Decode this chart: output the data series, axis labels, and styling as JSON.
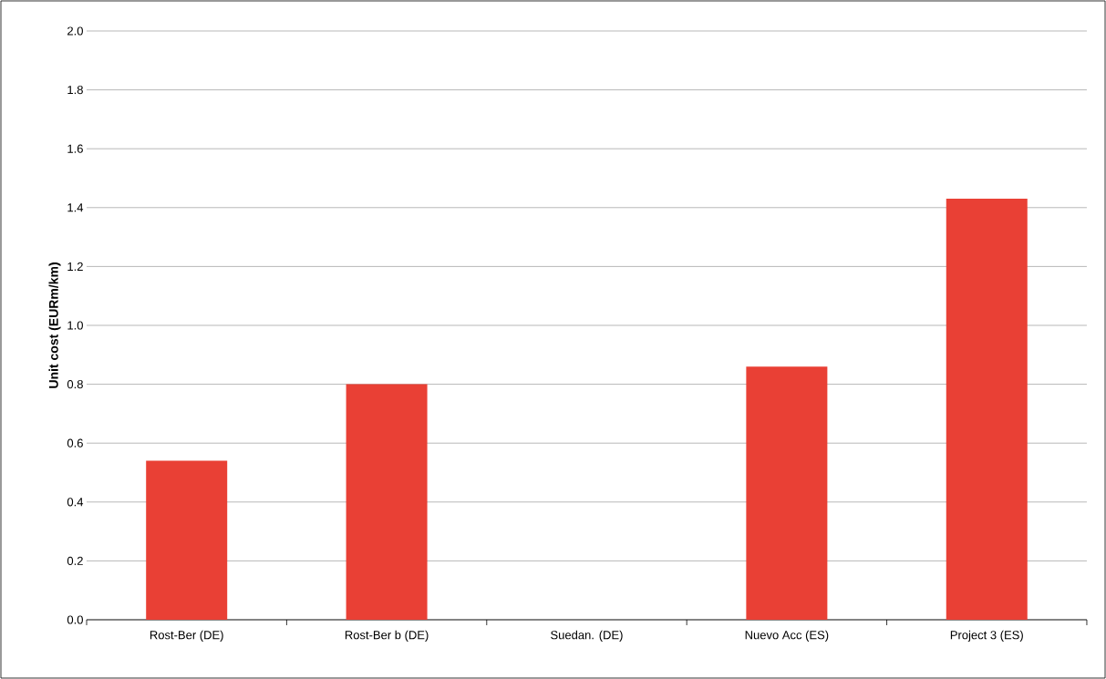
{
  "chart_data": {
    "type": "bar",
    "ylabel": "Unit cost (EURm/km)",
    "categories": [
      "Rost-Ber (DE)",
      "Rost-Ber b (DE)",
      "Suedan. (DE)",
      "Nuevo Acc (ES)",
      "Project 3 (ES)"
    ],
    "values": [
      0.54,
      0.8,
      null,
      0.86,
      1.43
    ],
    "color": "#e94035",
    "ylim": [
      0,
      2.0
    ],
    "yticks": [
      {
        "value": 0,
        "label": "0.0"
      },
      0.2,
      0.4,
      0.6,
      0.8,
      {
        "value": 1,
        "label": "1.0"
      },
      1.2,
      1.4,
      1.6,
      1.8,
      {
        "value": 2,
        "label": "2.0"
      }
    ],
    "grid": "y"
  }
}
